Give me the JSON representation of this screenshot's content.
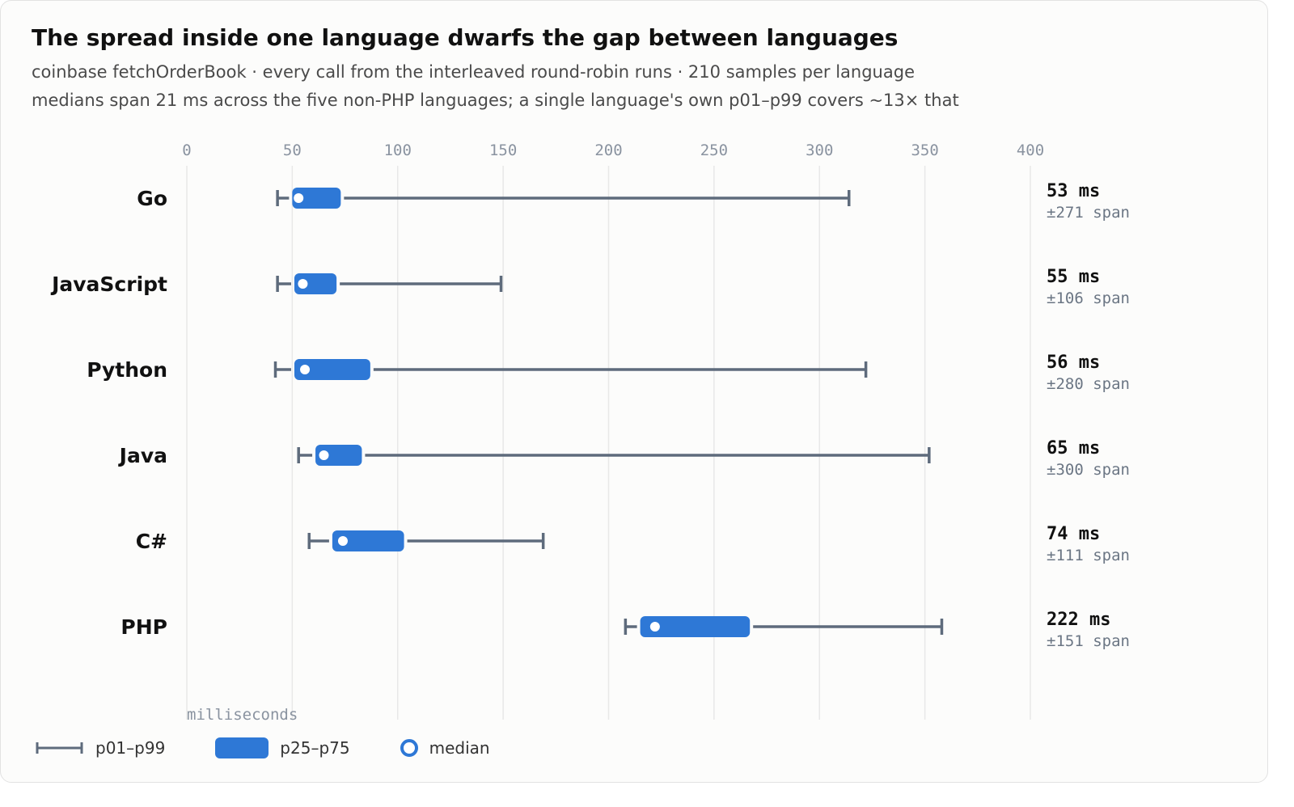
{
  "chart_data": {
    "type": "range",
    "title": "The spread inside one language dwarfs the gap between languages",
    "subtitle_lines": [
      "coinbase fetchOrderBook · every call from the interleaved round-robin runs · 210 samples per language",
      "medians span 21 ms across the five non-PHP languages; a single language's own p01–p99 covers ~13× that"
    ],
    "xlabel": "milliseconds",
    "xlim": [
      0,
      400
    ],
    "xticks": [
      0,
      50,
      100,
      150,
      200,
      250,
      300,
      350,
      400
    ],
    "grid": true,
    "legend_position": "bottom-left",
    "legend": {
      "whisker": "p01–p99",
      "box": "p25–p75",
      "median": "median"
    },
    "unit_suffix": "ms",
    "span_prefix": "±",
    "span_suffix": "span",
    "series": [
      {
        "name": "Go",
        "p01": 43,
        "p25": 50,
        "p50": 53,
        "p75": 73,
        "p99": 314,
        "median_label": "53",
        "span_label": "271"
      },
      {
        "name": "JavaScript",
        "p01": 43,
        "p25": 51,
        "p50": 55,
        "p75": 71,
        "p99": 149,
        "median_label": "55",
        "span_label": "106"
      },
      {
        "name": "Python",
        "p01": 42,
        "p25": 51,
        "p50": 56,
        "p75": 87,
        "p99": 322,
        "median_label": "56",
        "span_label": "280"
      },
      {
        "name": "Java",
        "p01": 53,
        "p25": 61,
        "p50": 65,
        "p75": 83,
        "p99": 352,
        "median_label": "65",
        "span_label": "300"
      },
      {
        "name": "C#",
        "p01": 58,
        "p25": 69,
        "p50": 74,
        "p75": 103,
        "p99": 169,
        "median_label": "74",
        "span_label": "111"
      },
      {
        "name": "PHP",
        "p01": 208,
        "p25": 215,
        "p50": 222,
        "p75": 267,
        "p99": 358,
        "median_label": "222",
        "span_label": "151"
      }
    ],
    "colors": {
      "box": "#2e78d6",
      "whisker": "#5e6b7c",
      "grid": "#e8e8e8",
      "tick": "#8a93a0",
      "median_fill": "#ffffff"
    }
  }
}
